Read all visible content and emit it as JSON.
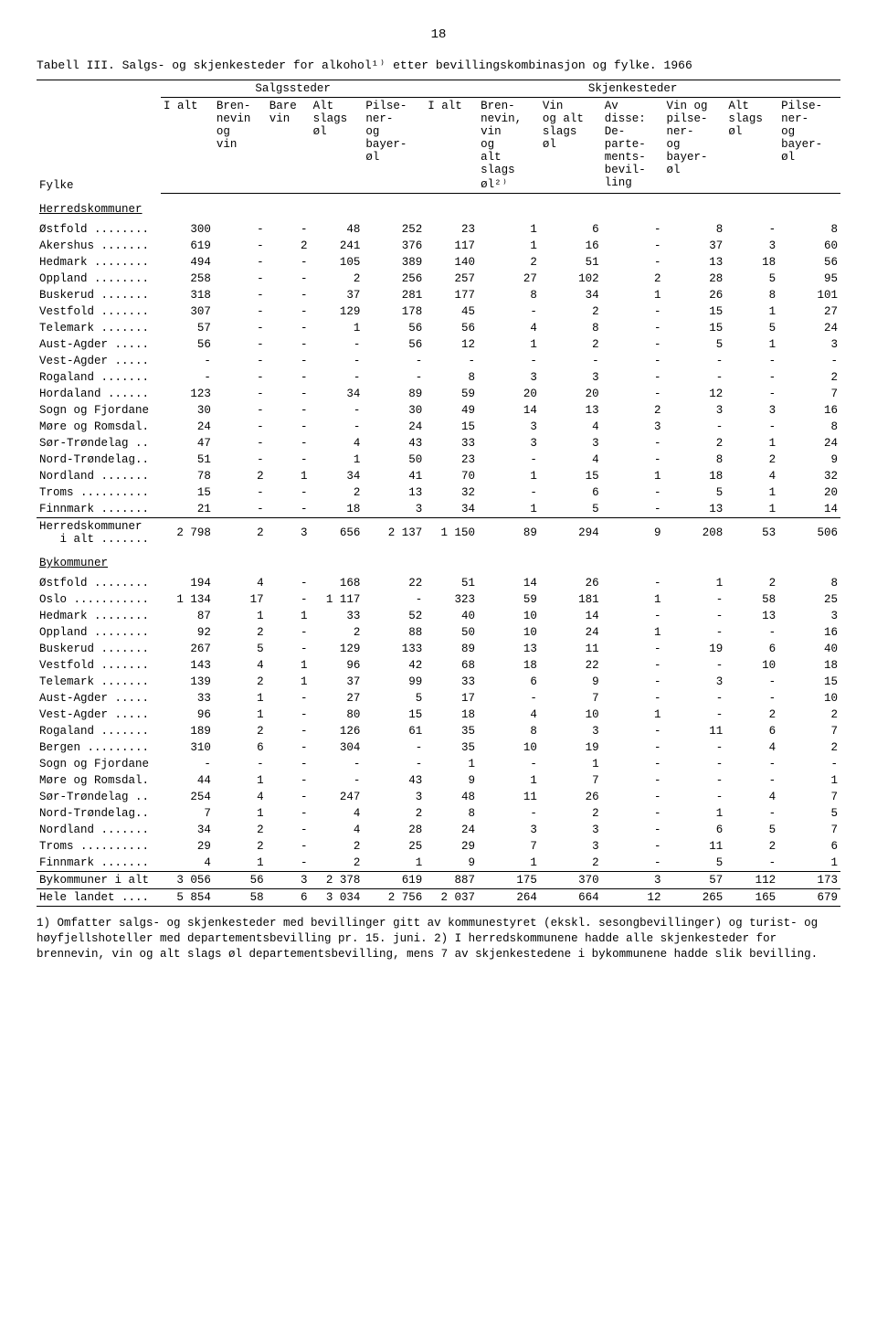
{
  "page_number": "18",
  "title": "Tabell III.  Salgs- og skjenkesteder for alkohol¹⁾ etter bevillingskombinasjon og fylke.  1966",
  "group_headers": {
    "salgssteder": "Salgssteder",
    "skjenkesteder": "Skjenkesteder"
  },
  "columns": {
    "fylke": "Fylke",
    "s_ialt": "I alt",
    "s_brennevin": "Bren-\nnevin\nog\nvin",
    "s_barevin": "Bare\nvin",
    "s_altslags": "Alt\nslags\nøl",
    "s_pilsner": "Pilse-\nner-\nog\nbayer-\nøl",
    "k_ialt": "I alt",
    "k_brennevin": "Bren-\nnevin,\nvin\nog\nalt\nslags\nøl²⁾",
    "k_vin": "Vin\nog alt\nslags\nøl",
    "k_avdisse": "Av\ndisse:\nDe-\nparte-\nments-\nbevil-\nling",
    "k_vinpils": "Vin og\npilse-\nner-\nog\nbayer-\nøl",
    "k_altslags": "Alt\nslags\nøl",
    "k_pilsner": "Pilse-\nner-\nog\nbayer-\nøl"
  },
  "sections": [
    {
      "heading": "Herredskommuner",
      "rows": [
        {
          "f": "Østfold ........",
          "v": [
            "300",
            "-",
            "-",
            "48",
            "252",
            "23",
            "1",
            "6",
            "-",
            "8",
            "-",
            "8"
          ]
        },
        {
          "f": "Akershus .......",
          "v": [
            "619",
            "-",
            "2",
            "241",
            "376",
            "117",
            "1",
            "16",
            "-",
            "37",
            "3",
            "60"
          ]
        },
        {
          "f": "Hedmark ........",
          "v": [
            "494",
            "-",
            "-",
            "105",
            "389",
            "140",
            "2",
            "51",
            "-",
            "13",
            "18",
            "56"
          ]
        },
        {
          "f": "Oppland ........",
          "v": [
            "258",
            "-",
            "-",
            "2",
            "256",
            "257",
            "27",
            "102",
            "2",
            "28",
            "5",
            "95"
          ]
        },
        {
          "f": "Buskerud .......",
          "v": [
            "318",
            "-",
            "-",
            "37",
            "281",
            "177",
            "8",
            "34",
            "1",
            "26",
            "8",
            "101"
          ]
        },
        {
          "f": "Vestfold .......",
          "v": [
            "307",
            "-",
            "-",
            "129",
            "178",
            "45",
            "-",
            "2",
            "-",
            "15",
            "1",
            "27"
          ]
        },
        {
          "f": "Telemark .......",
          "v": [
            "57",
            "-",
            "-",
            "1",
            "56",
            "56",
            "4",
            "8",
            "-",
            "15",
            "5",
            "24"
          ]
        },
        {
          "f": "Aust-Agder .....",
          "v": [
            "56",
            "-",
            "-",
            "-",
            "56",
            "12",
            "1",
            "2",
            "-",
            "5",
            "1",
            "3"
          ]
        },
        {
          "f": "Vest-Agder .....",
          "v": [
            "-",
            "-",
            "-",
            "-",
            "-",
            "-",
            "-",
            "-",
            "-",
            "-",
            "-",
            "-"
          ]
        },
        {
          "f": "Rogaland .......",
          "v": [
            "-",
            "-",
            "-",
            "-",
            "-",
            "8",
            "3",
            "3",
            "-",
            "-",
            "-",
            "2"
          ]
        },
        {
          "f": "Hordaland ......",
          "v": [
            "123",
            "-",
            "-",
            "34",
            "89",
            "59",
            "20",
            "20",
            "-",
            "12",
            "-",
            "7"
          ]
        },
        {
          "f": "Sogn og Fjordane",
          "v": [
            "30",
            "-",
            "-",
            "-",
            "30",
            "49",
            "14",
            "13",
            "2",
            "3",
            "3",
            "16"
          ]
        },
        {
          "f": "Møre og Romsdal.",
          "v": [
            "24",
            "-",
            "-",
            "-",
            "24",
            "15",
            "3",
            "4",
            "3",
            "-",
            "-",
            "8"
          ]
        },
        {
          "f": "Sør-Trøndelag ..",
          "v": [
            "47",
            "-",
            "-",
            "4",
            "43",
            "33",
            "3",
            "3",
            "-",
            "2",
            "1",
            "24"
          ]
        },
        {
          "f": "Nord-Trøndelag..",
          "v": [
            "51",
            "-",
            "-",
            "1",
            "50",
            "23",
            "-",
            "4",
            "-",
            "8",
            "2",
            "9"
          ]
        },
        {
          "f": "Nordland .......",
          "v": [
            "78",
            "2",
            "1",
            "34",
            "41",
            "70",
            "1",
            "15",
            "1",
            "18",
            "4",
            "32"
          ]
        },
        {
          "f": "Troms ..........",
          "v": [
            "15",
            "-",
            "-",
            "2",
            "13",
            "32",
            "-",
            "6",
            "-",
            "5",
            "1",
            "20"
          ]
        },
        {
          "f": "Finnmark .......",
          "v": [
            "21",
            "-",
            "-",
            "18",
            "3",
            "34",
            "1",
            "5",
            "-",
            "13",
            "1",
            "14"
          ]
        }
      ],
      "total": {
        "f": "Herredskommuner\n   i alt .......",
        "v": [
          "2 798",
          "2",
          "3",
          "656",
          "2 137",
          "1 150",
          "89",
          "294",
          "9",
          "208",
          "53",
          "506"
        ]
      }
    },
    {
      "heading": "Bykommuner",
      "rows": [
        {
          "f": "Østfold ........",
          "v": [
            "194",
            "4",
            "-",
            "168",
            "22",
            "51",
            "14",
            "26",
            "-",
            "1",
            "2",
            "8"
          ]
        },
        {
          "f": "Oslo ...........",
          "v": [
            "1 134",
            "17",
            "-",
            "1 117",
            "-",
            "323",
            "59",
            "181",
            "1",
            "-",
            "58",
            "25"
          ]
        },
        {
          "f": "Hedmark ........",
          "v": [
            "87",
            "1",
            "1",
            "33",
            "52",
            "40",
            "10",
            "14",
            "-",
            "-",
            "13",
            "3"
          ]
        },
        {
          "f": "Oppland ........",
          "v": [
            "92",
            "2",
            "-",
            "2",
            "88",
            "50",
            "10",
            "24",
            "1",
            "-",
            "-",
            "16"
          ]
        },
        {
          "f": "Buskerud .......",
          "v": [
            "267",
            "5",
            "-",
            "129",
            "133",
            "89",
            "13",
            "11",
            "-",
            "19",
            "6",
            "40"
          ]
        },
        {
          "f": "Vestfold .......",
          "v": [
            "143",
            "4",
            "1",
            "96",
            "42",
            "68",
            "18",
            "22",
            "-",
            "-",
            "10",
            "18"
          ]
        },
        {
          "f": "Telemark .......",
          "v": [
            "139",
            "2",
            "1",
            "37",
            "99",
            "33",
            "6",
            "9",
            "-",
            "3",
            "-",
            "15"
          ]
        },
        {
          "f": "Aust-Agder .....",
          "v": [
            "33",
            "1",
            "-",
            "27",
            "5",
            "17",
            "-",
            "7",
            "-",
            "-",
            "-",
            "10"
          ]
        },
        {
          "f": "Vest-Agder .....",
          "v": [
            "96",
            "1",
            "-",
            "80",
            "15",
            "18",
            "4",
            "10",
            "1",
            "-",
            "2",
            "2"
          ]
        },
        {
          "f": "Rogaland .......",
          "v": [
            "189",
            "2",
            "-",
            "126",
            "61",
            "35",
            "8",
            "3",
            "-",
            "11",
            "6",
            "7"
          ]
        },
        {
          "f": "Bergen .........",
          "v": [
            "310",
            "6",
            "-",
            "304",
            "-",
            "35",
            "10",
            "19",
            "-",
            "-",
            "4",
            "2"
          ]
        },
        {
          "f": "Sogn og Fjordane",
          "v": [
            "-",
            "-",
            "-",
            "-",
            "-",
            "1",
            "-",
            "1",
            "-",
            "-",
            "-",
            "-"
          ]
        },
        {
          "f": "Møre og Romsdal.",
          "v": [
            "44",
            "1",
            "-",
            "-",
            "43",
            "9",
            "1",
            "7",
            "-",
            "-",
            "-",
            "1"
          ]
        },
        {
          "f": "Sør-Trøndelag ..",
          "v": [
            "254",
            "4",
            "-",
            "247",
            "3",
            "48",
            "11",
            "26",
            "-",
            "-",
            "4",
            "7"
          ]
        },
        {
          "f": "Nord-Trøndelag..",
          "v": [
            "7",
            "1",
            "-",
            "4",
            "2",
            "8",
            "-",
            "2",
            "-",
            "1",
            "-",
            "5"
          ]
        },
        {
          "f": "Nordland .......",
          "v": [
            "34",
            "2",
            "-",
            "4",
            "28",
            "24",
            "3",
            "3",
            "-",
            "6",
            "5",
            "7"
          ]
        },
        {
          "f": "Troms ..........",
          "v": [
            "29",
            "2",
            "-",
            "2",
            "25",
            "29",
            "7",
            "3",
            "-",
            "11",
            "2",
            "6"
          ]
        },
        {
          "f": "Finnmark .......",
          "v": [
            "4",
            "1",
            "-",
            "2",
            "1",
            "9",
            "1",
            "2",
            "-",
            "5",
            "-",
            "1"
          ]
        }
      ],
      "total": {
        "f": "Bykommuner i alt",
        "v": [
          "3 056",
          "56",
          "3",
          "2 378",
          "619",
          "887",
          "175",
          "370",
          "3",
          "57",
          "112",
          "173"
        ]
      }
    }
  ],
  "grand_total": {
    "f": "Hele landet ....",
    "v": [
      "5 854",
      "58",
      "6",
      "3 034",
      "2 756",
      "2 037",
      "264",
      "664",
      "12",
      "265",
      "165",
      "679"
    ]
  },
  "footnote": "1) Omfatter salgs- og skjenkesteder med bevillinger gitt av kommunestyret (ekskl. sesongbevillinger) og turist- og høyfjellshoteller med departementsbevilling pr. 15. juni.   2) I herredskommunene hadde alle skjenkesteder for brennevin, vin og alt slags øl departementsbevilling, mens 7 av skjenkestedene i bykommunene hadde slik bevilling."
}
